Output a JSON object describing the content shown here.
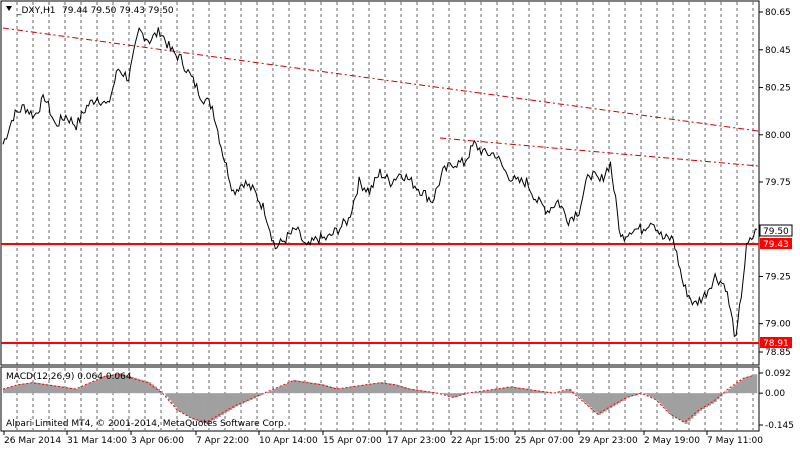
{
  "header": {
    "symbol_tf": "_DXY,H1",
    "ohlc": "79.44 79.50 79.43 79.50",
    "dropdown_icon": "triangle-down-icon"
  },
  "main_axis": {
    "ticks": [
      "80.65",
      "80.45",
      "80.25",
      "80.00",
      "79.75",
      "79.50",
      "79.25",
      "79.00",
      "78.85"
    ],
    "current_price": "79.50",
    "hline1_label": "79.43",
    "hline2_label": "78.91"
  },
  "macd": {
    "label": "MACD(12,26,9) 0.064 0.064",
    "ticks": [
      "0.092",
      "0.00",
      "-0.145"
    ]
  },
  "footer": {
    "copyright": "Alpari Limited MT4, © 2001-2014, MetaQuotes Software Corp."
  },
  "x_axis": {
    "labels": [
      "26 Mar 2014",
      "31 Mar 14:00",
      "3 Apr 06:00",
      "7 Apr 22:00",
      "10 Apr 14:00",
      "15 Apr 07:00",
      "17 Apr 23:00",
      "22 Apr 15:00",
      "25 Apr 07:00",
      "29 Apr 23:00",
      "2 May 19:00",
      "7 May 11:00"
    ]
  },
  "colors": {
    "price_line": "#000000",
    "support_line": "#ff0000",
    "trend_line": "#cc0000",
    "grid": "#000000",
    "histogram": "#a0a0a0",
    "signal": "#ff0000",
    "tag_bg": "#ff0000",
    "current_bg": "#ffffff"
  },
  "chart_data": {
    "type": "line",
    "title": "_DXY,H1",
    "ylim": [
      78.85,
      80.65
    ],
    "x_labels": [
      "26 Mar 2014",
      "31 Mar 14:00",
      "3 Apr 06:00",
      "7 Apr 22:00",
      "10 Apr 14:00",
      "15 Apr 07:00",
      "17 Apr 23:00",
      "22 Apr 15:00",
      "25 Apr 07:00",
      "29 Apr 23:00",
      "2 May 19:00",
      "7 May 11:00"
    ],
    "price_series": [
      79.95,
      80.1,
      80.15,
      80.1,
      80.2,
      80.05,
      80.1,
      80.05,
      80.15,
      80.2,
      80.15,
      80.35,
      80.3,
      80.55,
      80.5,
      80.55,
      80.45,
      80.4,
      80.3,
      80.2,
      80.15,
      79.9,
      79.7,
      79.75,
      79.7,
      79.6,
      79.4,
      79.45,
      79.5,
      79.4,
      79.45,
      79.45,
      79.5,
      79.55,
      79.75,
      79.7,
      79.8,
      79.75,
      79.8,
      79.75,
      79.7,
      79.65,
      79.8,
      79.85,
      79.85,
      79.95,
      79.9,
      79.9,
      79.8,
      79.75,
      79.75,
      79.65,
      79.6,
      79.65,
      79.55,
      79.6,
      79.8,
      79.75,
      79.85,
      79.45,
      79.5,
      79.5,
      79.55,
      79.45,
      79.45,
      79.2,
      79.1,
      79.15,
      79.25,
      79.2,
      78.91,
      79.4,
      79.5
    ],
    "macd_series": [
      0.02,
      0.04,
      0.05,
      0.04,
      0.03,
      0.02,
      0.05,
      0.08,
      0.09,
      0.07,
      0.05,
      0.0,
      -0.08,
      -0.12,
      -0.14,
      -0.1,
      -0.06,
      -0.03,
      0.0,
      0.03,
      0.06,
      0.05,
      0.04,
      0.02,
      0.03,
      0.04,
      0.05,
      0.04,
      0.02,
      0.01,
      0.0,
      -0.02,
      0.0,
      0.01,
      0.02,
      0.03,
      0.02,
      0.01,
      0.0,
      0.02,
      -0.04,
      -0.1,
      -0.06,
      -0.02,
      0.0,
      -0.03,
      -0.1,
      -0.14,
      -0.08,
      -0.04,
      0.02,
      0.07,
      0.09
    ],
    "macd_ylim": [
      -0.145,
      0.092
    ],
    "hlines": [
      79.43,
      78.91
    ],
    "current": 79.5
  }
}
